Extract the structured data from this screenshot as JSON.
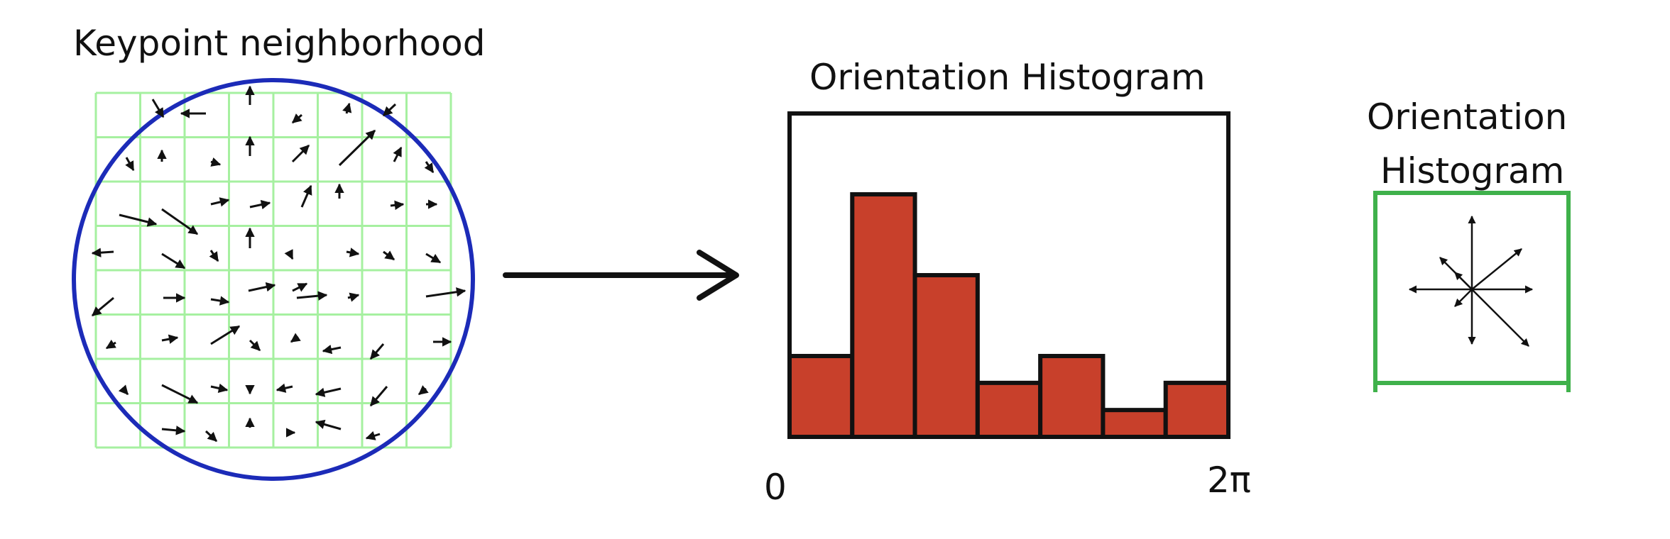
{
  "neighborhood": {
    "title": "Keypoint neighborhood"
  },
  "histogram": {
    "title": "Orientation Histogram",
    "x_start_label": "0",
    "x_end_label": "2π",
    "bar_color": "#c8402b",
    "bar_values": [
      0.25,
      0.75,
      0.5,
      0.167,
      0.25,
      0.083,
      0.167
    ]
  },
  "descriptor": {
    "title_line1": "Orientation",
    "title_line2": "Histogram",
    "border_color": "#3fb14b"
  },
  "colors": {
    "grid": "#a6f0a0",
    "circle": "#1c2bb8",
    "arrow": "#111111"
  }
}
